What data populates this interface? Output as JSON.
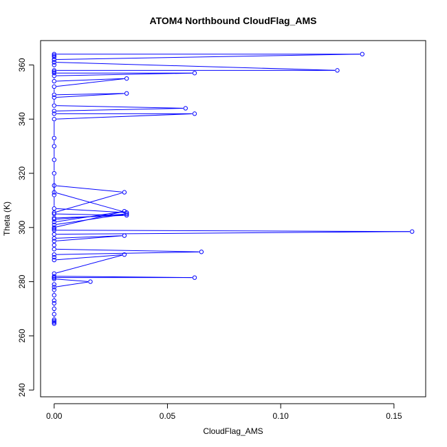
{
  "chart_data": {
    "type": "scatter",
    "title": "ATOM4 Northbound CloudFlag_AMS",
    "xlabel": "CloudFlag_AMS",
    "ylabel": "Theta (K)",
    "xlim": [
      -0.006,
      0.164
    ],
    "ylim": [
      237.5,
      369
    ],
    "xticks": [
      0.0,
      0.05,
      0.1,
      0.15
    ],
    "xtick_labels": [
      "0.00",
      "0.05",
      "0.10",
      "0.15"
    ],
    "yticks": [
      240,
      260,
      280,
      300,
      320,
      340,
      360
    ],
    "ytick_labels": [
      "240",
      "260",
      "280",
      "300",
      "320",
      "340",
      "360"
    ],
    "color": "#0000ff",
    "grid": false,
    "style": "points connected by lines in sample order (type='b')",
    "series": [
      {
        "x": [
          0,
          0,
          0,
          0,
          0,
          0,
          0,
          0,
          0,
          0,
          0,
          0,
          0.016,
          0,
          0,
          0,
          0.062,
          0,
          0,
          0.031,
          0,
          0,
          0,
          0.065,
          0,
          0,
          0,
          0.031,
          0,
          0,
          0.158,
          0,
          0,
          0,
          0.031,
          0,
          0,
          0.032,
          0,
          0,
          0.032,
          0,
          0,
          0.031,
          0,
          0,
          0.032,
          0,
          0,
          0,
          0,
          0,
          0,
          0,
          0.062,
          0,
          0,
          0.058,
          0,
          0,
          0.032,
          0,
          0,
          0.032,
          0,
          0,
          0.062,
          0,
          0,
          0,
          0.125,
          0,
          0,
          0.136,
          0,
          0,
          0,
          0,
          0,
          0
        ],
        "y": [
          264.5,
          265,
          265.5,
          266,
          268,
          270,
          272,
          273,
          275,
          277,
          279,
          278,
          280,
          281,
          281.5,
          281.5,
          281.5,
          282,
          283,
          290,
          288,
          289,
          290,
          291,
          292,
          293.5,
          295,
          297,
          296,
          297.5,
          298.5,
          299,
          299.5,
          300,
          306,
          302,
          301,
          305,
          303,
          303.5,
          304.5,
          305,
          305.5,
          313,
          315.5,
          313,
          305.5,
          307,
          312,
          320,
          325,
          330,
          333,
          340,
          342,
          342,
          343,
          344,
          345,
          348,
          349.5,
          349,
          352,
          355,
          354,
          356,
          357,
          357,
          357.5,
          358,
          358,
          361,
          362,
          364,
          364,
          363,
          363.5,
          362,
          361,
          360
        ]
      }
    ]
  }
}
